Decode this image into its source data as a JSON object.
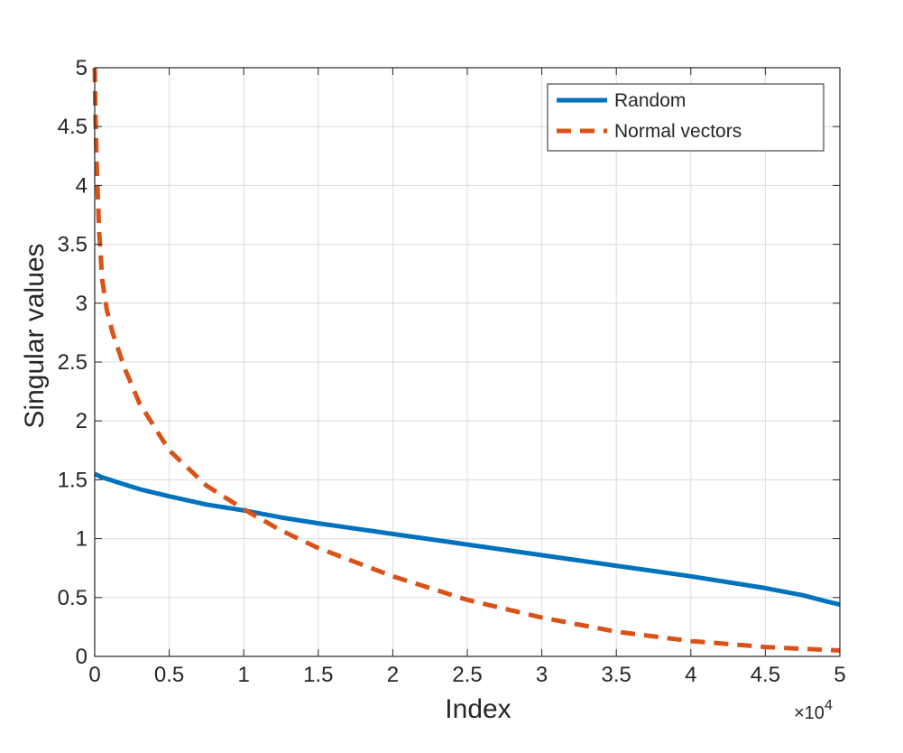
{
  "chart_data": {
    "type": "line",
    "xlabel": "Index",
    "ylabel": "Singular values",
    "x_exponent_label": "×10",
    "x_exponent_power": "4",
    "xlim": [
      0,
      5
    ],
    "ylim": [
      0,
      5
    ],
    "xticks": [
      0,
      0.5,
      1,
      1.5,
      2,
      2.5,
      3,
      3.5,
      4,
      4.5,
      5
    ],
    "xtick_labels": [
      "0",
      "0.5",
      "1",
      "1.5",
      "2",
      "2.5",
      "3",
      "3.5",
      "4",
      "4.5",
      "5"
    ],
    "yticks": [
      0,
      0.5,
      1,
      1.5,
      2,
      2.5,
      3,
      3.5,
      4,
      4.5,
      5
    ],
    "ytick_labels": [
      "0",
      "0.5",
      "1",
      "1.5",
      "2",
      "2.5",
      "3",
      "3.5",
      "4",
      "4.5",
      "5"
    ],
    "grid": true,
    "legend_position": "top-right",
    "series": [
      {
        "name": "Random",
        "color": "#0072BD",
        "style": "solid",
        "x": [
          0,
          0.05,
          0.15,
          0.3,
          0.5,
          0.75,
          1.0,
          1.25,
          1.5,
          2.0,
          2.5,
          3.0,
          3.5,
          4.0,
          4.5,
          4.75,
          4.9,
          5.0
        ],
        "y": [
          1.55,
          1.52,
          1.48,
          1.42,
          1.36,
          1.29,
          1.24,
          1.18,
          1.13,
          1.04,
          0.95,
          0.86,
          0.77,
          0.68,
          0.58,
          0.52,
          0.47,
          0.44
        ]
      },
      {
        "name": "Normal vectors",
        "color": "#D95319",
        "style": "dashed",
        "x": [
          0,
          0.005,
          0.015,
          0.03,
          0.05,
          0.08,
          0.12,
          0.2,
          0.3,
          0.4,
          0.5,
          0.75,
          1.0,
          1.25,
          1.5,
          2.0,
          2.5,
          3.0,
          3.5,
          4.0,
          4.5,
          5.0
        ],
        "y": [
          5.0,
          4.6,
          4.1,
          3.6,
          3.2,
          2.95,
          2.75,
          2.45,
          2.15,
          1.95,
          1.75,
          1.45,
          1.25,
          1.07,
          0.92,
          0.68,
          0.48,
          0.33,
          0.21,
          0.13,
          0.08,
          0.05
        ]
      }
    ]
  }
}
